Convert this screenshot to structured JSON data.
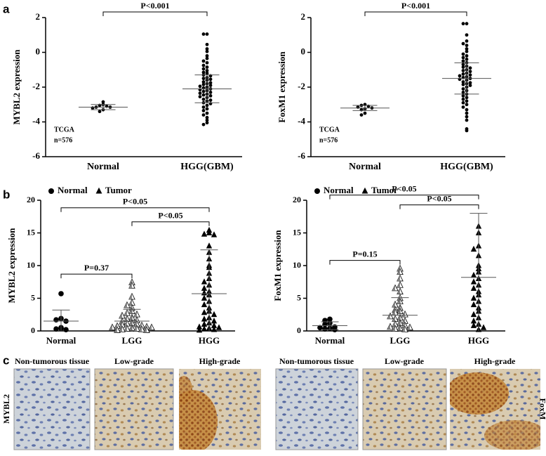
{
  "panel_labels": [
    "a",
    "b",
    "c"
  ],
  "chart_data": [
    {
      "type": "dotplot",
      "ylabel": "MYBL2 expression",
      "ylim": [
        -6,
        2
      ],
      "yticks": [
        -6,
        -4,
        -2,
        0,
        2
      ],
      "categories": [
        "Normal",
        "HGG(GBM)"
      ],
      "notes": [
        "TCGA",
        "n=576"
      ],
      "groups": [
        {
          "marker": "circle",
          "mean": -3.15,
          "sd": 0.15,
          "values": [
            -2.85,
            -3.0,
            -3.05,
            -3.1,
            -3.15,
            -3.15,
            -3.2,
            -3.3,
            -3.4
          ]
        },
        {
          "marker": "circle",
          "mean": -2.1,
          "sd": 0.8,
          "values": [
            1.05,
            1.05,
            0.45,
            0.2,
            0.05,
            -0.2,
            -0.35,
            -0.5,
            -0.6,
            -0.75,
            -0.85,
            -0.95,
            -1.05,
            -1.15,
            -1.2,
            -1.3,
            -1.35,
            -1.45,
            -1.5,
            -1.55,
            -1.6,
            -1.7,
            -1.75,
            -1.8,
            -1.85,
            -1.9,
            -1.95,
            -2.0,
            -2.05,
            -2.1,
            -2.15,
            -2.2,
            -2.25,
            -2.3,
            -2.35,
            -2.4,
            -2.45,
            -2.5,
            -2.55,
            -2.6,
            -2.7,
            -2.75,
            -2.8,
            -2.9,
            -2.95,
            -3.05,
            -3.15,
            -3.25,
            -3.35,
            -3.5,
            -3.6,
            -3.75,
            -3.9,
            -4.05,
            -4.15
          ]
        }
      ],
      "brackets": [
        {
          "from": 0,
          "to": 1,
          "label": "P<0.001"
        }
      ]
    },
    {
      "type": "dotplot",
      "ylabel": "FoxM1 expression",
      "ylim": [
        -6,
        2
      ],
      "yticks": [
        -6,
        -4,
        -2,
        0,
        2
      ],
      "categories": [
        "Normal",
        "HGG(GBM)"
      ],
      "notes": [
        "TCGA",
        "n=576"
      ],
      "groups": [
        {
          "marker": "circle",
          "mean": -3.2,
          "sd": 0.15,
          "values": [
            -3.0,
            -3.05,
            -3.1,
            -3.15,
            -3.2,
            -3.25,
            -3.3,
            -3.5,
            -3.6
          ]
        },
        {
          "marker": "circle",
          "mean": -1.5,
          "sd": 0.9,
          "values": [
            1.65,
            1.65,
            1.0,
            0.65,
            0.5,
            0.4,
            0.2,
            0.05,
            -0.1,
            -0.2,
            -0.3,
            -0.4,
            -0.5,
            -0.6,
            -0.7,
            -0.8,
            -0.85,
            -0.9,
            -1.0,
            -1.05,
            -1.1,
            -1.2,
            -1.25,
            -1.3,
            -1.35,
            -1.4,
            -1.45,
            -1.5,
            -1.55,
            -1.6,
            -1.7,
            -1.75,
            -1.8,
            -1.85,
            -1.9,
            -2.0,
            -2.1,
            -2.2,
            -2.3,
            -2.4,
            -2.5,
            -2.6,
            -2.7,
            -2.8,
            -2.9,
            -3.0,
            -3.15,
            -3.3,
            -3.5,
            -3.7,
            -3.9,
            -4.4,
            -4.5
          ]
        }
      ],
      "brackets": [
        {
          "from": 0,
          "to": 1,
          "label": "P<0.001"
        }
      ]
    },
    {
      "type": "dotplot",
      "ylabel": "MYBL2 expression",
      "ylim": [
        0,
        20
      ],
      "yticks": [
        0,
        5,
        10,
        15,
        20
      ],
      "categories": [
        "Normal",
        "LGG",
        "HGG"
      ],
      "legend": [
        {
          "name": "Normal",
          "marker": "circle"
        },
        {
          "name": "Tumor",
          "marker": "triangle"
        }
      ],
      "groups": [
        {
          "marker": "circle",
          "mean": 1.5,
          "sd": 1.7,
          "values": [
            5.7,
            1.9,
            1.7,
            1.5,
            0.5,
            0.4,
            0.3,
            0.2
          ]
        },
        {
          "marker": "half-triangle",
          "mean": 1.5,
          "sd": 1.8,
          "values": [
            7.4,
            6.9,
            5.2,
            4.3,
            3.9,
            3.5,
            3.0,
            2.7,
            2.5,
            2.3,
            2.0,
            1.8,
            1.6,
            1.4,
            1.2,
            1.1,
            1.0,
            0.9,
            0.8,
            0.7,
            0.6,
            0.5,
            0.5,
            0.4,
            0.3,
            0.3,
            0.2,
            0.2,
            0.1,
            0.1
          ]
        },
        {
          "marker": "triangle",
          "mean": 5.7,
          "sd": 6.7,
          "values": [
            15.4,
            15.0,
            14.8,
            14.7,
            13.0,
            12.0,
            11.0,
            10.0,
            9.7,
            8.8,
            8.0,
            7.5,
            7.0,
            6.5,
            6.0,
            5.8,
            5.5,
            5.0,
            4.5,
            4.0,
            3.5,
            3.0,
            2.8,
            2.5,
            2.0,
            1.8,
            1.5,
            1.2,
            1.0,
            0.8,
            0.6,
            0.5,
            0.4,
            0.3,
            0.2,
            0.1
          ]
        }
      ],
      "brackets": [
        {
          "from": 0,
          "to": 1,
          "label": "P=0.37"
        },
        {
          "from": 1,
          "to": 2,
          "label": "P<0.05"
        },
        {
          "from": 0,
          "to": 2,
          "label": "P<0.05"
        }
      ]
    },
    {
      "type": "dotplot",
      "ylabel": "FoxM1 expression",
      "ylim": [
        0,
        20
      ],
      "yticks": [
        0,
        5,
        10,
        15,
        20
      ],
      "categories": [
        "Normal",
        "LGG",
        "HGG"
      ],
      "legend": [
        {
          "name": "Normal",
          "marker": "circle"
        },
        {
          "name": "Tumor",
          "marker": "triangle"
        }
      ],
      "groups": [
        {
          "marker": "circle",
          "mean": 0.8,
          "sd": 0.6,
          "values": [
            1.8,
            1.6,
            1.2,
            1.0,
            0.6,
            0.5,
            0.4,
            0.3,
            0.2
          ]
        },
        {
          "marker": "half-triangle",
          "mean": 2.4,
          "sd": 2.7,
          "values": [
            9.5,
            9.0,
            8.0,
            7.0,
            6.5,
            6.0,
            5.0,
            4.5,
            4.0,
            3.5,
            3.2,
            3.0,
            2.8,
            2.5,
            2.2,
            2.0,
            1.8,
            1.5,
            1.2,
            1.0,
            0.8,
            0.6,
            0.5,
            0.4,
            0.3,
            0.2
          ]
        },
        {
          "marker": "triangle",
          "mean": 8.2,
          "sd": 9.8,
          "values": [
            16,
            15,
            13,
            12.5,
            11.5,
            10,
            9.5,
            9,
            8.5,
            8,
            7.5,
            7,
            6.5,
            6,
            5.5,
            5,
            4.5,
            4,
            3.5,
            3,
            2.5,
            2,
            1.5,
            1,
            0.8,
            0.5,
            0.2
          ]
        }
      ],
      "brackets": [
        {
          "from": 0,
          "to": 1,
          "label": "P=0.15"
        },
        {
          "from": 1,
          "to": 2,
          "label": "P<0.05"
        },
        {
          "from": 0,
          "to": 2,
          "label": "P<0.05"
        }
      ]
    }
  ],
  "panel_c": {
    "row_labels": [
      "MYBL2",
      "FoxM"
    ],
    "columns": [
      "Non-tumorous tissue",
      "Low-grade",
      "High-grade",
      "Non-tumorous tissue",
      "Low-grade",
      "High-grade"
    ]
  }
}
